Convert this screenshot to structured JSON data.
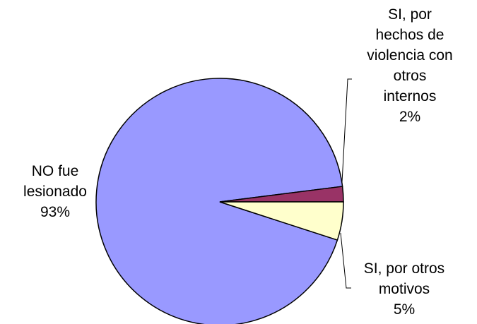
{
  "chart_data": {
    "type": "pie",
    "title": "",
    "slices": [
      {
        "label_lines": [
          "NO fue",
          "lesionado",
          "93%"
        ],
        "value": 93,
        "color": "#9999ff"
      },
      {
        "label_lines": [
          "SI, por",
          "hechos de",
          "violencia con",
          "otros",
          "internos",
          "2%"
        ],
        "value": 2,
        "color": "#993366"
      },
      {
        "label_lines": [
          "SI, por otros",
          "motivos",
          "5%"
        ],
        "value": 5,
        "color": "#ffffcc"
      }
    ],
    "legend": "none"
  }
}
